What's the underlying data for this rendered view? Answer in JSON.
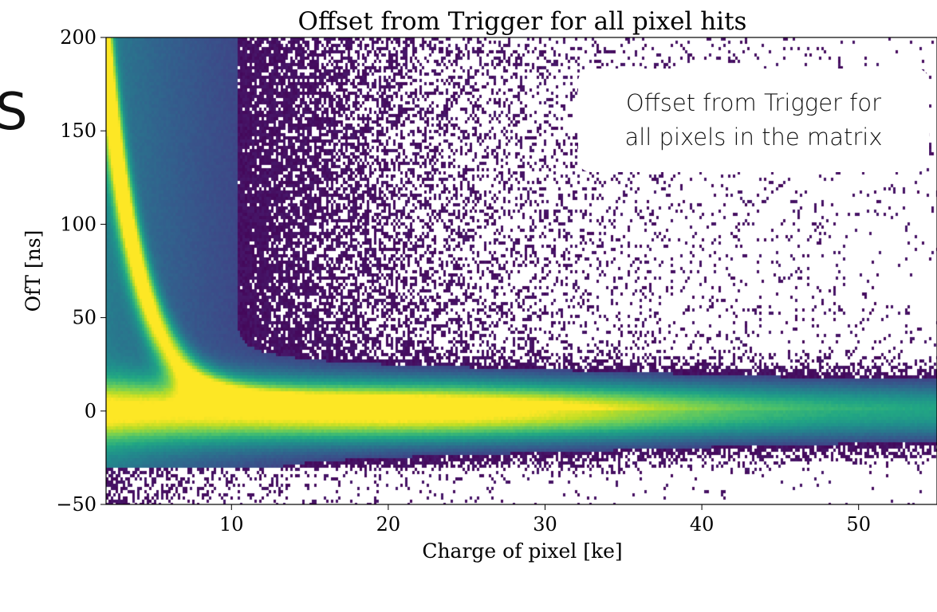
{
  "chart_data": {
    "type": "heatmap",
    "title": "Offset from Trigger for all pixel hits",
    "xlabel": "Charge of pixel [ke]",
    "ylabel": "OfT [ns]",
    "xlim": [
      2,
      55
    ],
    "ylim": [
      -50,
      200
    ],
    "x_ticks": [
      10,
      20,
      30,
      40,
      50
    ],
    "y_ticks": [
      -50,
      0,
      50,
      100,
      150,
      200
    ],
    "colormap": "viridis",
    "features": {
      "main_band_offset_ns": 0,
      "main_band_halfwidth_ns": 12,
      "timewalk_curve": "offset rises steeply toward 200 ns as charge approaches 2 ke",
      "noise_floor_range_ns": [
        -30,
        200
      ],
      "sparse_region_starts_ke": 30
    },
    "annotations": [
      "Offset from Trigger for\nall pixels in the matrix"
    ]
  },
  "annotation": {
    "line1": "Offset from Trigger for",
    "line2": "all pixels in the matrix"
  },
  "edge_glyph": "S"
}
